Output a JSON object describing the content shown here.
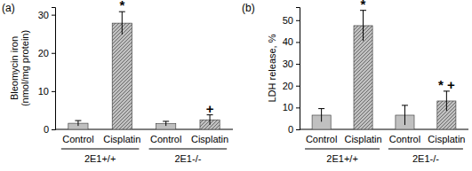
{
  "chart_data": [
    {
      "type": "bar",
      "title": "(a)",
      "y_label": [
        "Bleomycin iron",
        "(nmol/mg protein)"
      ],
      "categories": [
        "Control",
        "Cisplatin",
        "Control",
        "Cisplatin"
      ],
      "groups": [
        "2E1+/+",
        "2E1-/-"
      ],
      "values": [
        1.6,
        27.8,
        1.5,
        2.5
      ],
      "errors": [
        0.7,
        3.0,
        0.6,
        1.3
      ],
      "colors": [
        "#c0c0c0",
        "#c0c0c0",
        "#c0c0c0",
        "#c0c0c0"
      ],
      "annotations": [
        {
          "index": 1,
          "text": "*"
        },
        {
          "index": 3,
          "text": "+"
        }
      ],
      "ylim": [
        0,
        32
      ],
      "yticks": [
        0,
        10,
        20,
        30
      ]
    },
    {
      "type": "bar",
      "title": "(b)",
      "y_label": [
        "LDH release, %"
      ],
      "categories": [
        "Control",
        "Cisplatin",
        "Control",
        "Cisplatin"
      ],
      "groups": [
        "2E1+/+",
        "2E1-/-"
      ],
      "values": [
        6.5,
        47.5,
        6.5,
        13.0
      ],
      "errors": [
        3.0,
        7.0,
        4.5,
        4.5
      ],
      "colors": [
        "#c0c0c0",
        "#c0c0c0",
        "#c0c0c0",
        "#c0c0c0"
      ],
      "annotations": [
        {
          "index": 1,
          "text": "*"
        },
        {
          "index": 3,
          "text": "* +"
        }
      ],
      "ylim": [
        0,
        56
      ],
      "yticks": [
        0,
        10,
        20,
        30,
        40,
        50
      ]
    }
  ]
}
